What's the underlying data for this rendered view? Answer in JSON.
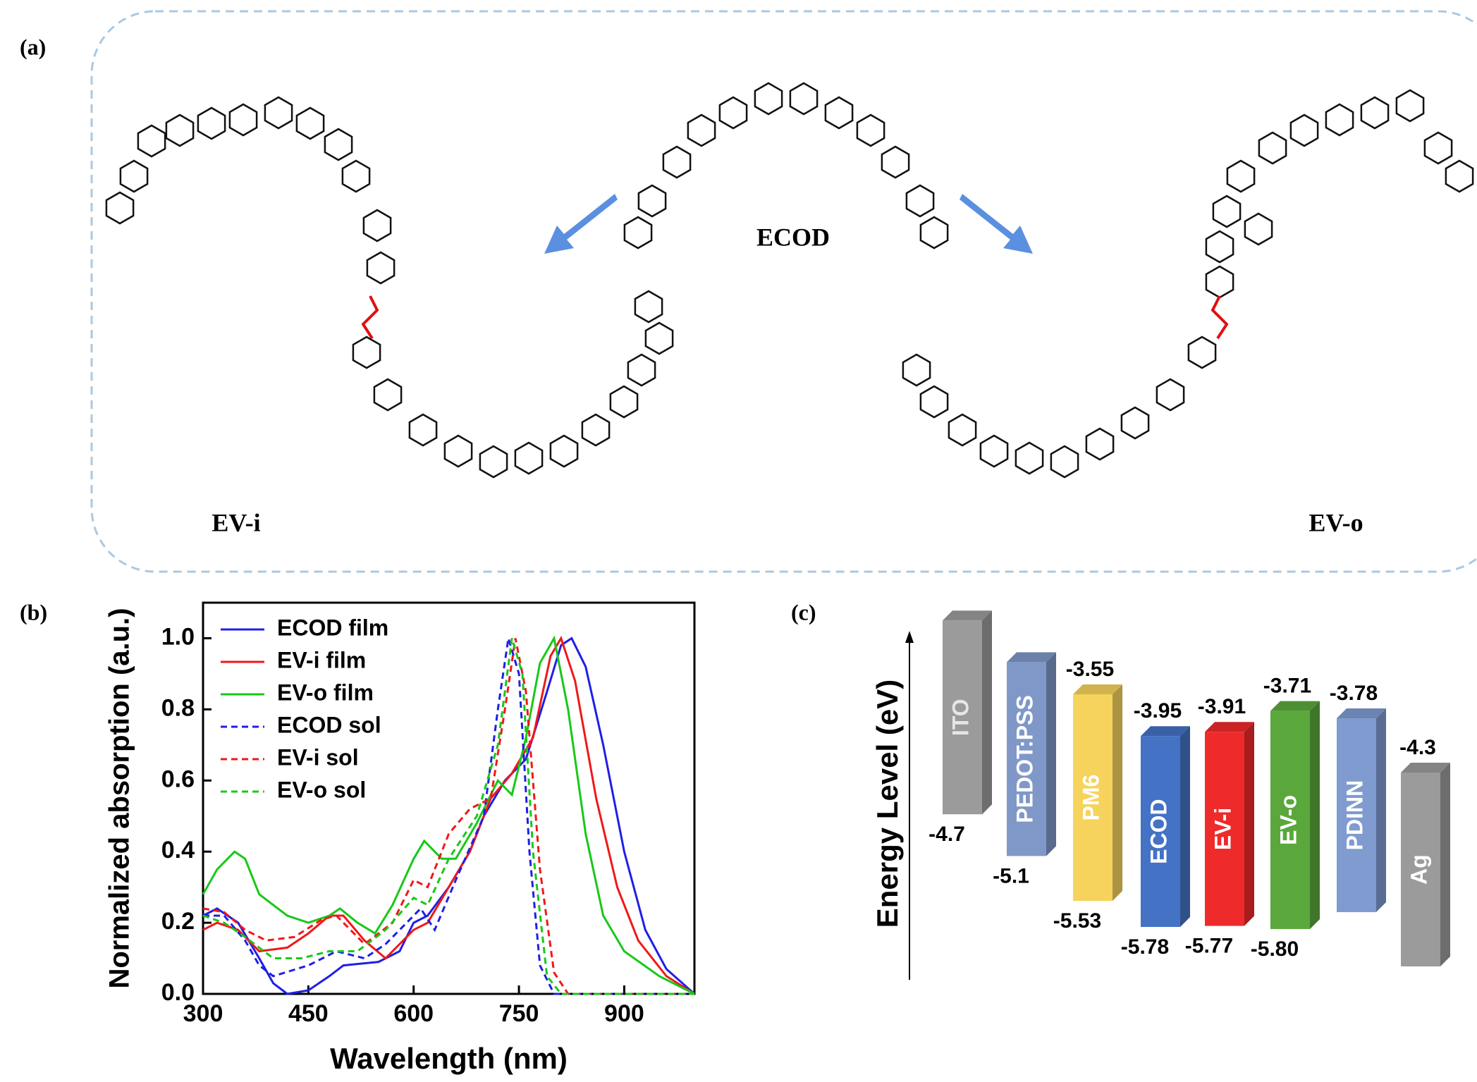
{
  "panel_labels": [
    "(a)",
    "(b)",
    "(c)"
  ],
  "structures": {
    "center": "ECOD",
    "left": "EV-i",
    "right": "EV-o"
  },
  "chart_data": [
    {
      "type": "line",
      "xlabel": "Wavelength (nm)",
      "ylabel": "Normalized absorption (a.u.)",
      "xlim": [
        300,
        1000
      ],
      "ylim": [
        0,
        1.1
      ],
      "xticks": [
        300,
        450,
        600,
        750,
        900
      ],
      "yticks": [
        {
          "value": 0,
          "label": "0.0"
        },
        0.2,
        0.4,
        0.6,
        0.8,
        {
          "value": 1,
          "label": "1.0"
        }
      ],
      "legend": "upper left",
      "series": [
        {
          "name": "ECOD film",
          "color": "#1f1fe6",
          "dash": false,
          "x": [
            300,
            320,
            350,
            380,
            400,
            420,
            450,
            480,
            500,
            550,
            580,
            600,
            620,
            650,
            680,
            700,
            730,
            760,
            790,
            810,
            825,
            845,
            870,
            900,
            930,
            960,
            1000
          ],
          "values": [
            0.22,
            0.24,
            0.2,
            0.1,
            0.03,
            0.0,
            0.01,
            0.05,
            0.08,
            0.09,
            0.12,
            0.2,
            0.22,
            0.3,
            0.4,
            0.5,
            0.6,
            0.66,
            0.85,
            0.98,
            1.0,
            0.92,
            0.7,
            0.4,
            0.18,
            0.07,
            0.0
          ]
        },
        {
          "name": "EV-i film",
          "color": "#f01818",
          "dash": false,
          "x": [
            300,
            320,
            350,
            380,
            420,
            450,
            480,
            500,
            530,
            560,
            600,
            620,
            650,
            680,
            710,
            740,
            770,
            795,
            810,
            830,
            860,
            890,
            920,
            960,
            1000
          ],
          "values": [
            0.18,
            0.2,
            0.18,
            0.12,
            0.13,
            0.17,
            0.22,
            0.22,
            0.15,
            0.1,
            0.18,
            0.2,
            0.3,
            0.4,
            0.55,
            0.62,
            0.72,
            0.95,
            1.0,
            0.88,
            0.55,
            0.3,
            0.15,
            0.05,
            0.0
          ]
        },
        {
          "name": "EV-o film",
          "color": "#18c818",
          "dash": false,
          "x": [
            300,
            320,
            345,
            360,
            380,
            420,
            450,
            480,
            495,
            520,
            545,
            570,
            600,
            615,
            640,
            660,
            690,
            720,
            740,
            760,
            780,
            800,
            820,
            845,
            870,
            900,
            950,
            1000
          ],
          "values": [
            0.28,
            0.35,
            0.4,
            0.38,
            0.28,
            0.22,
            0.2,
            0.22,
            0.24,
            0.2,
            0.17,
            0.25,
            0.38,
            0.43,
            0.38,
            0.38,
            0.48,
            0.6,
            0.56,
            0.72,
            0.93,
            1.0,
            0.8,
            0.45,
            0.22,
            0.12,
            0.05,
            0.0
          ]
        },
        {
          "name": "ECOD sol",
          "color": "#1f1fe6",
          "dash": true,
          "x": [
            300,
            330,
            360,
            380,
            400,
            450,
            490,
            530,
            560,
            590,
            610,
            630,
            660,
            700,
            720,
            735,
            750,
            765,
            780,
            800,
            1000
          ],
          "values": [
            0.22,
            0.22,
            0.15,
            0.08,
            0.05,
            0.08,
            0.12,
            0.1,
            0.14,
            0.2,
            0.24,
            0.18,
            0.32,
            0.5,
            0.8,
            1.0,
            0.9,
            0.4,
            0.08,
            0.0,
            0.0
          ]
        },
        {
          "name": "EV-i sol",
          "color": "#f01818",
          "dash": true,
          "x": [
            300,
            330,
            360,
            390,
            430,
            470,
            490,
            530,
            570,
            600,
            620,
            650,
            680,
            710,
            730,
            745,
            760,
            780,
            800,
            820,
            1000
          ],
          "values": [
            0.24,
            0.23,
            0.18,
            0.15,
            0.16,
            0.21,
            0.22,
            0.14,
            0.2,
            0.32,
            0.3,
            0.45,
            0.52,
            0.55,
            0.8,
            1.0,
            0.85,
            0.35,
            0.06,
            0.0,
            0.0
          ]
        },
        {
          "name": "EV-o sol",
          "color": "#18c818",
          "dash": true,
          "x": [
            300,
            330,
            360,
            400,
            440,
            480,
            520,
            560,
            600,
            620,
            650,
            690,
            720,
            740,
            755,
            770,
            790,
            810,
            1000
          ],
          "values": [
            0.22,
            0.2,
            0.16,
            0.1,
            0.1,
            0.12,
            0.12,
            0.18,
            0.27,
            0.25,
            0.38,
            0.5,
            0.7,
            1.0,
            0.9,
            0.4,
            0.05,
            0.0,
            0.0
          ]
        }
      ]
    },
    {
      "type": "energy-level",
      "ylabel": "Energy Level (eV)",
      "categories": [
        "ITO",
        "PEDOT:PSS",
        "PM6",
        "ECOD",
        "EV-i",
        "EV-o",
        "PDINN",
        "Ag"
      ],
      "colors": [
        "#9b9b9b",
        "#7f98c8",
        "#f6d35c",
        "#4472c4",
        "#ee2a2a",
        "#5aa83c",
        "#7f9bd0",
        "#9b9b9b"
      ],
      "lumo": [
        null,
        null,
        -3.55,
        -3.95,
        -3.91,
        -3.71,
        -3.78,
        -4.3
      ],
      "homo": [
        -4.7,
        -5.1,
        -5.53,
        -5.78,
        -5.77,
        -5.8,
        null,
        null
      ],
      "homo_value_labels": [
        "-4.7",
        "-5.1",
        "-5.53",
        "-5.78",
        "-5.77",
        "-5.80",
        null,
        null
      ]
    }
  ]
}
